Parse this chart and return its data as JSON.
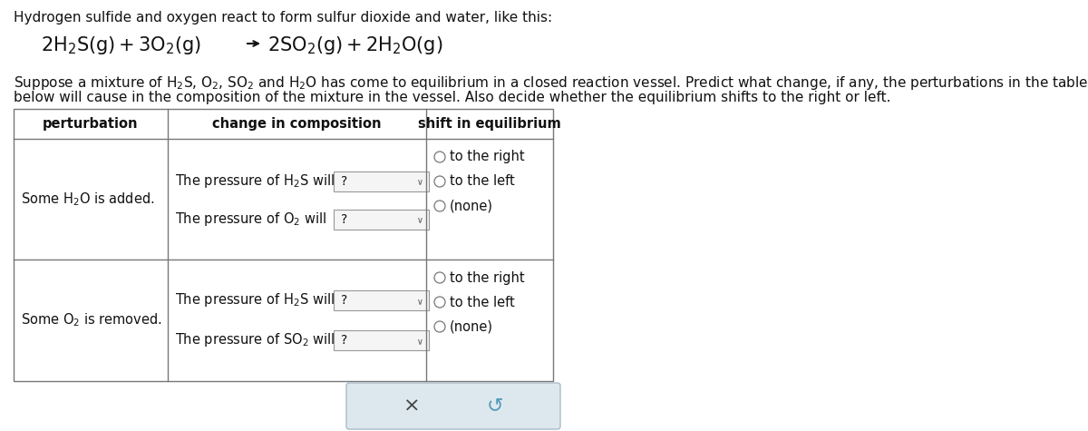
{
  "title_line1": "Hydrogen sulfide and oxygen react to form sulfur dioxide and water, like this:",
  "col_headers": [
    "perturbation",
    "change in composition",
    "shift in equilibrium"
  ],
  "row1_perturbation": "Some H₂O is added.",
  "row1_change1_pre": "The pressure of H",
  "row1_change1_sub": "2",
  "row1_change1_post": "S will",
  "row1_change2_pre": "The pressure of O",
  "row1_change2_sub": "2",
  "row1_change2_post": " will",
  "row2_perturbation": "Some O₂ is removed.",
  "row2_change1_pre": "The pressure of H",
  "row2_change1_sub": "2",
  "row2_change1_post": "S will",
  "row2_change2_pre": "The pressure of SO",
  "row2_change2_sub": "2",
  "row2_change2_post": " will",
  "row1_shifts": [
    "to the right",
    "to the left",
    "(none)"
  ],
  "row2_shifts": [
    "to the right",
    "to the left",
    "(none)"
  ],
  "bg_color": "#ffffff",
  "table_line_color": "#777777",
  "text_color": "#111111",
  "dropdown_bg": "#f5f5f5",
  "dropdown_border": "#999999",
  "button_bg": "#dde8ee",
  "button_border": "#aabbc8",
  "circle_color": "#777777"
}
